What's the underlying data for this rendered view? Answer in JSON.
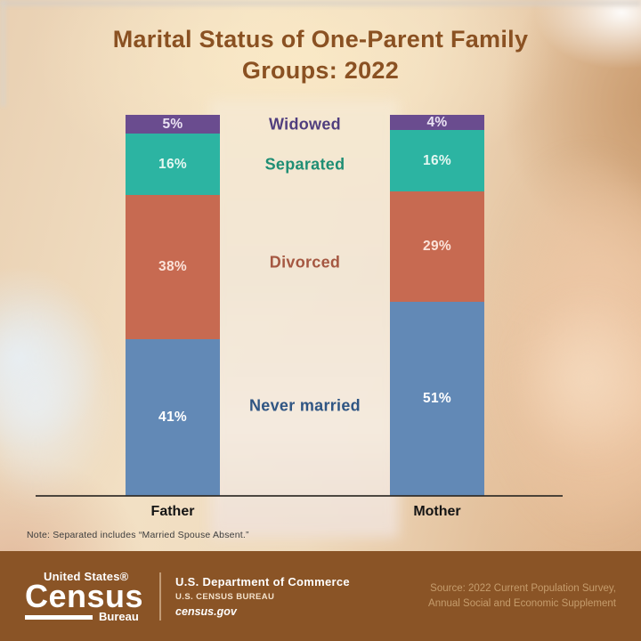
{
  "title": {
    "line1": "Marital Status of One-Parent Family",
    "line2": "Groups: 2022",
    "color": "#8a5122"
  },
  "chart_data": {
    "type": "bar",
    "stacked": true,
    "orientation": "vertical",
    "categories": [
      "Father",
      "Mother"
    ],
    "series": [
      {
        "name": "Never married",
        "values": [
          41,
          51
        ],
        "color": "#6289b6",
        "value_label_color": "#ffffff",
        "legend_color": "#2f5583"
      },
      {
        "name": "Divorced",
        "values": [
          38,
          29
        ],
        "color": "#c76a51",
        "value_label_color": "#fbe3da",
        "legend_color": "#a55741"
      },
      {
        "name": "Separated",
        "values": [
          16,
          16
        ],
        "color": "#2cb4a2",
        "value_label_color": "#e4f7f1",
        "legend_color": "#1f8e74"
      },
      {
        "name": "Widowed",
        "values": [
          5,
          4
        ],
        "color": "#6a4c8f",
        "value_label_color": "#eae2f3",
        "legend_color": "#503e7e"
      }
    ],
    "value_suffix": "%",
    "ylim": [
      0,
      100
    ],
    "grid": false,
    "legend_position": "between-bars"
  },
  "note": "Note: Separated includes “Married Spouse Absent.”",
  "footer": {
    "background": "#8a5426",
    "logo": {
      "top": "United States®",
      "main": "Census",
      "sub": "Bureau"
    },
    "dept_line1": "U.S. Department of Commerce",
    "dept_line2": "U.S. CENSUS BUREAU",
    "dept_line3": "census.gov",
    "source_line1": "Source: 2022 Current Population Survey,",
    "source_line2": "Annual Social and Economic Supplement"
  }
}
